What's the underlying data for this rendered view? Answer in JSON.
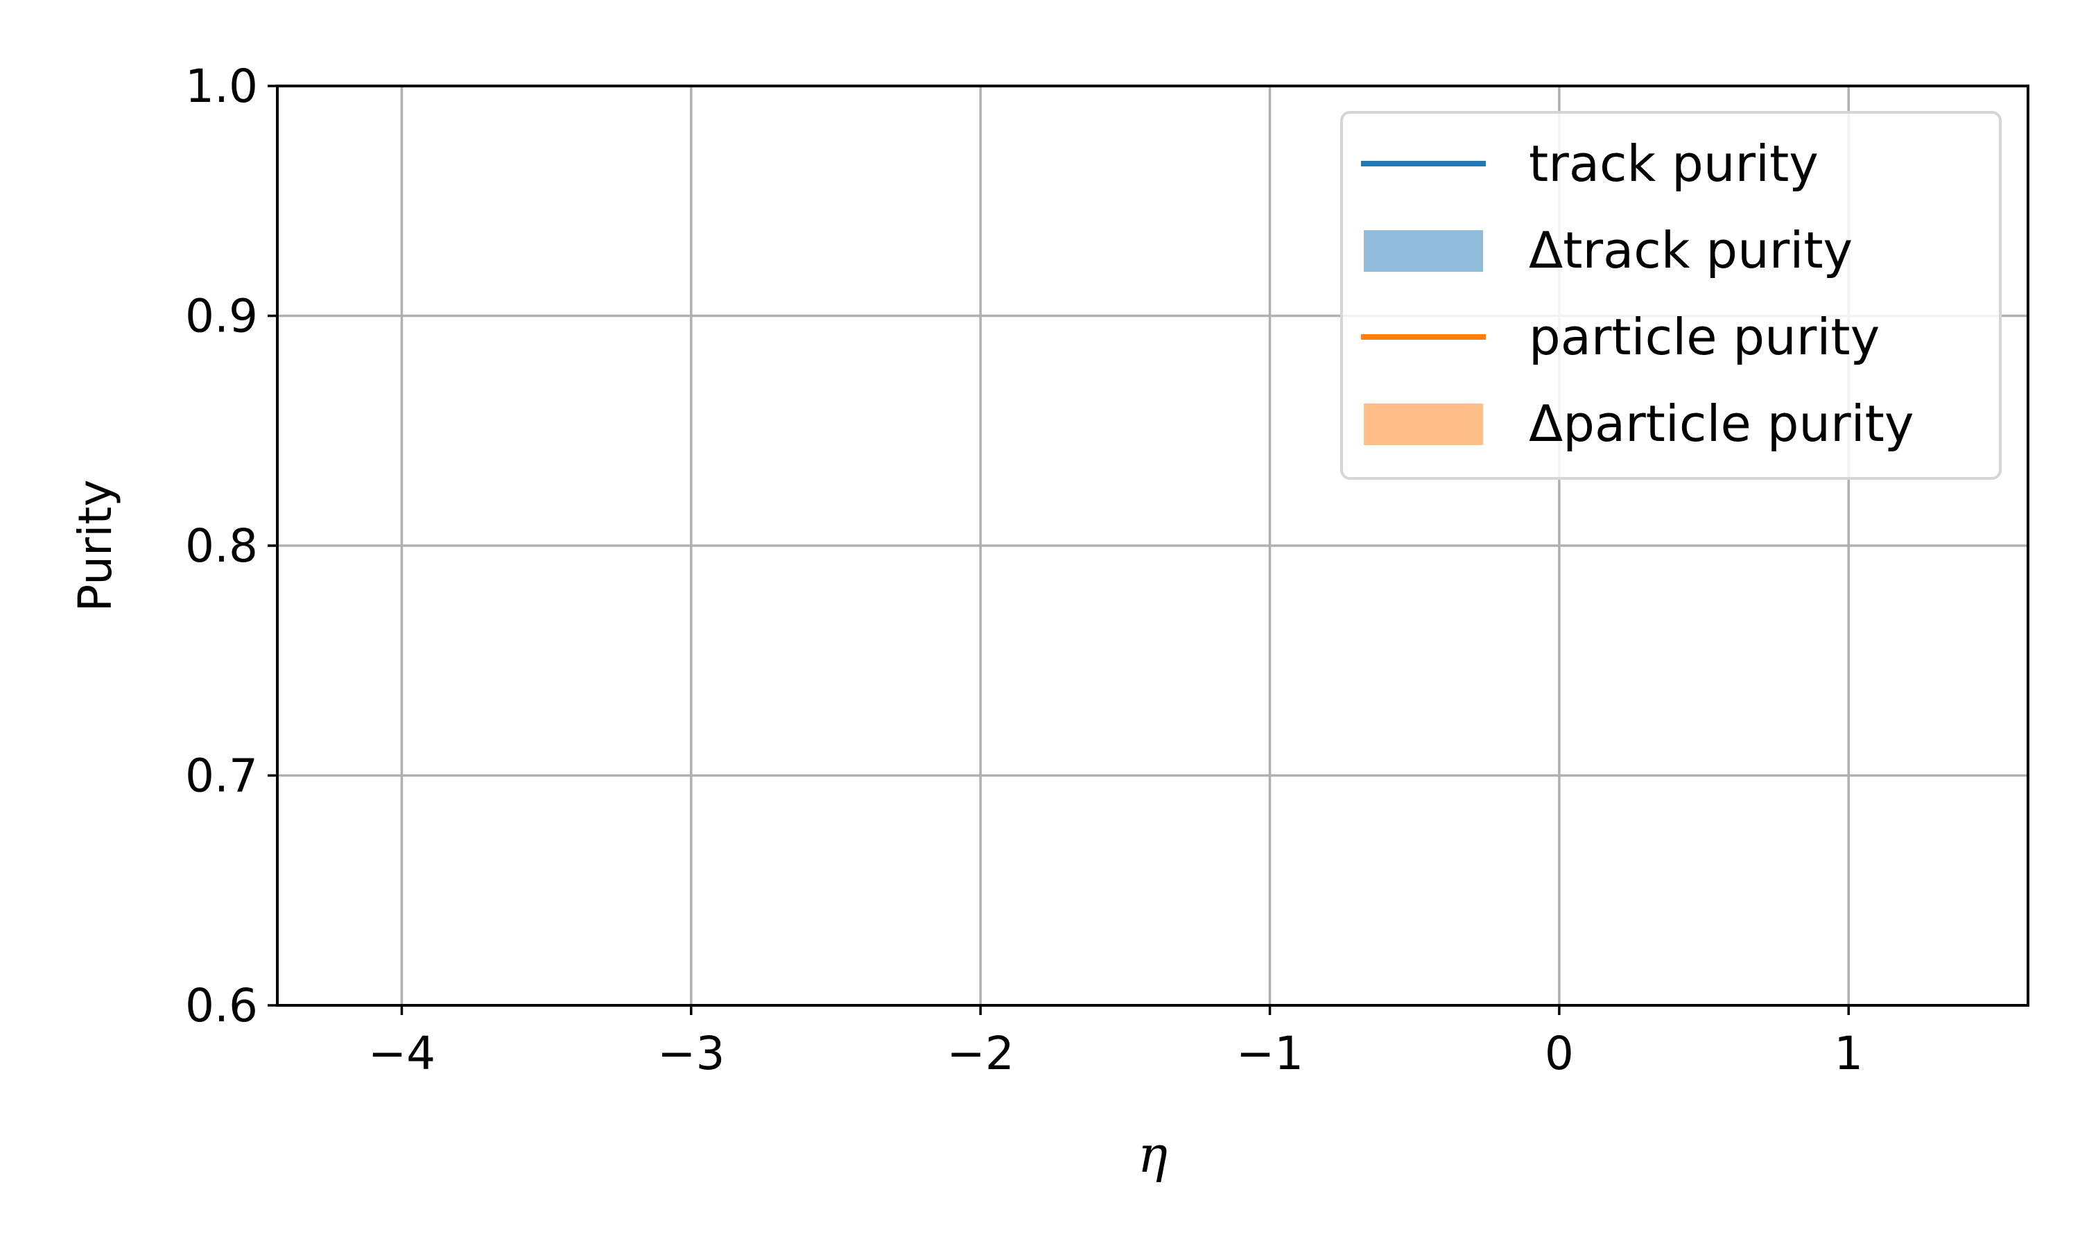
{
  "chart_data": {
    "type": "line",
    "title": "",
    "xlabel": "η",
    "ylabel": "Purity",
    "xlim": [
      -4.43,
      1.62
    ],
    "ylim": [
      0.6,
      1.0
    ],
    "xticks": [
      {
        "value": -4,
        "label": "−4"
      },
      {
        "value": -3,
        "label": "−3"
      },
      {
        "value": -2,
        "label": "−2"
      },
      {
        "value": -1,
        "label": "−1"
      },
      {
        "value": 0,
        "label": "0"
      },
      {
        "value": 1,
        "label": "1"
      }
    ],
    "yticks": [
      {
        "value": 0.6,
        "label": "0.6"
      },
      {
        "value": 0.7,
        "label": "0.7"
      },
      {
        "value": 0.8,
        "label": "0.8"
      },
      {
        "value": 0.9,
        "label": "0.9"
      },
      {
        "value": 1.0,
        "label": "1.0"
      }
    ],
    "grid": true,
    "legend_position": "top-right",
    "legend": [
      {
        "label": "track purity",
        "kind": "line",
        "color": "#1f77b4"
      },
      {
        "label": "Δtrack purity",
        "kind": "band",
        "color": "#8fbbd9"
      },
      {
        "label": "particle purity",
        "kind": "line",
        "color": "#ff7f0e"
      },
      {
        "label": "Δparticle purity",
        "kind": "band",
        "color": "#ffbf87"
      }
    ],
    "series": []
  }
}
